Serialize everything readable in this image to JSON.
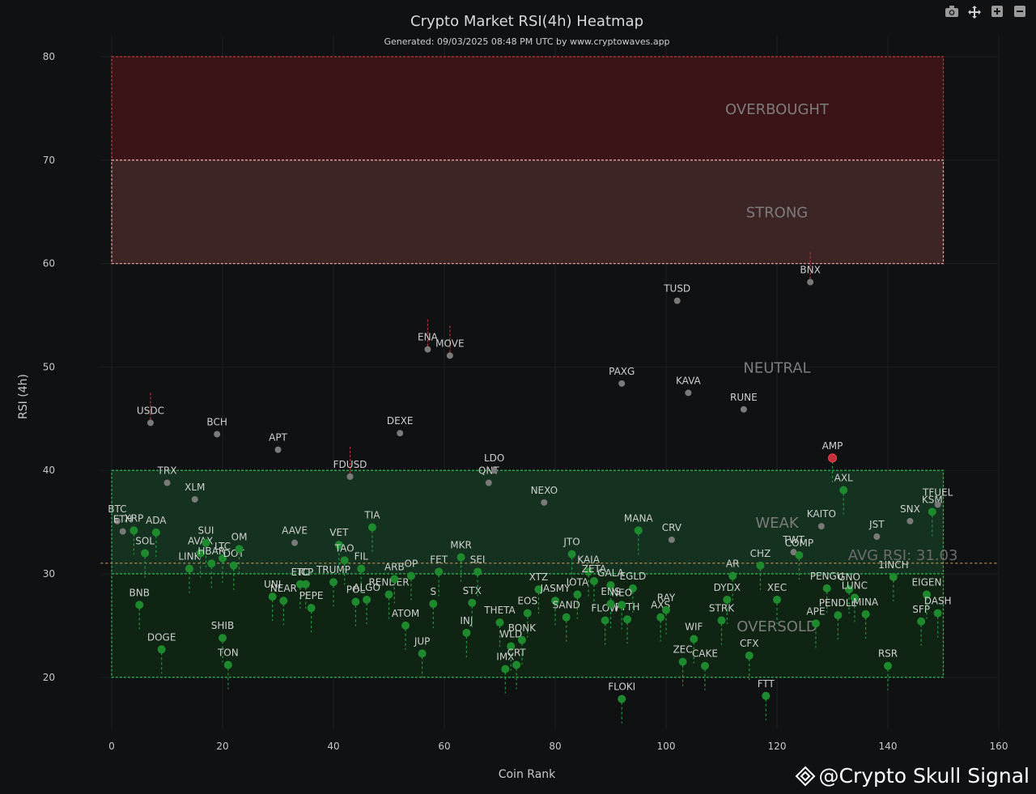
{
  "header": {
    "title": "Crypto Market RSI(4h) Heatmap",
    "subtitle": "Generated: 09/03/2025 08:48 PM UTC by www.cryptowaves.app"
  },
  "toolbar": {
    "camera": "camera-icon",
    "pan": "pan-icon",
    "zoom_in": "zoom-in-icon",
    "zoom_out": "zoom-out-icon"
  },
  "watermark": {
    "text": "@Crypto Skull Signal",
    "icon": "binance-diamond-icon"
  },
  "chart_data": {
    "type": "scatter",
    "title": "Crypto Market RSI(4h) Heatmap",
    "xlabel": "Coin Rank",
    "ylabel": "RSI (4h)",
    "xlim": [
      -2,
      160
    ],
    "ylim": [
      15,
      82
    ],
    "xticks": [
      0,
      20,
      40,
      60,
      80,
      100,
      120,
      140,
      160
    ],
    "yticks": [
      20,
      30,
      40,
      50,
      60,
      70,
      80
    ],
    "grid": true,
    "zones": [
      {
        "name": "OVERBOUGHT",
        "from": 70,
        "to": 80,
        "color": "#3a1416",
        "border": "#c0393b"
      },
      {
        "name": "STRONG",
        "from": 60,
        "to": 70,
        "color": "#3d2526",
        "border": "#e6a0a0"
      },
      {
        "name": "NEUTRAL",
        "from": 40,
        "to": 60,
        "color": "none",
        "border": "none"
      },
      {
        "name": "WEAK",
        "from": 30,
        "to": 40,
        "color": "#14321f",
        "border": "#2fae55"
      },
      {
        "name": "OVERSOLD",
        "from": 20,
        "to": 30,
        "color": "#102414",
        "border": "#2fae55"
      }
    ],
    "avg_rsi": 31.03,
    "avg_label": "AVG RSI: 31.03",
    "colors": {
      "neutral": "#7a7a7a",
      "oversold": "#1e8a2e",
      "overbought": "#c0303a",
      "avg_line": "#e0a060"
    },
    "points": [
      {
        "x": 1,
        "y": 35.1,
        "label": "BTC",
        "z": "n"
      },
      {
        "x": 2,
        "y": 34.1,
        "label": "ETH",
        "z": "n"
      },
      {
        "x": 4,
        "y": 34.2,
        "label": "XRP",
        "z": "w"
      },
      {
        "x": 5,
        "y": 27.0,
        "label": "BNB",
        "z": "o"
      },
      {
        "x": 6,
        "y": 32.0,
        "label": "SOL",
        "z": "o"
      },
      {
        "x": 7,
        "y": 44.6,
        "label": "USDC",
        "z": "n"
      },
      {
        "x": 8,
        "y": 34.0,
        "label": "ADA",
        "z": "w"
      },
      {
        "x": 9,
        "y": 22.7,
        "label": "DOGE",
        "z": "o"
      },
      {
        "x": 10,
        "y": 38.8,
        "label": "TRX",
        "z": "n"
      },
      {
        "x": 14,
        "y": 30.5,
        "label": "LINK",
        "z": "o"
      },
      {
        "x": 15,
        "y": 37.2,
        "label": "XLM",
        "z": "n"
      },
      {
        "x": 16,
        "y": 32.0,
        "label": "AVAX",
        "z": "w"
      },
      {
        "x": 17,
        "y": 33.0,
        "label": "SUI",
        "z": "w"
      },
      {
        "x": 18,
        "y": 31.0,
        "label": "HBAR",
        "z": "o"
      },
      {
        "x": 19,
        "y": 43.5,
        "label": "BCH",
        "z": "n"
      },
      {
        "x": 20,
        "y": 31.5,
        "label": "LTC",
        "z": "o"
      },
      {
        "x": 20,
        "y": 23.8,
        "label": "SHIB",
        "z": "o"
      },
      {
        "x": 21,
        "y": 21.2,
        "label": "TON",
        "z": "o"
      },
      {
        "x": 22,
        "y": 30.8,
        "label": "DOT",
        "z": "o"
      },
      {
        "x": 23,
        "y": 32.4,
        "label": "OM",
        "z": "w"
      },
      {
        "x": 30,
        "y": 42.0,
        "label": "APT",
        "z": "n"
      },
      {
        "x": 29,
        "y": 27.8,
        "label": "UNI",
        "z": "o"
      },
      {
        "x": 31,
        "y": 27.4,
        "label": "NEAR",
        "z": "o"
      },
      {
        "x": 33,
        "y": 33.0,
        "label": "AAVE",
        "z": "n"
      },
      {
        "x": 34,
        "y": 29.0,
        "label": "ETC",
        "z": "o"
      },
      {
        "x": 35,
        "y": 29.0,
        "label": "ICP",
        "z": "o"
      },
      {
        "x": 36,
        "y": 26.7,
        "label": "PEPE",
        "z": "o"
      },
      {
        "x": 40,
        "y": 29.2,
        "label": "TRUMP",
        "z": "o"
      },
      {
        "x": 41,
        "y": 32.8,
        "label": "VET",
        "z": "o"
      },
      {
        "x": 42,
        "y": 31.3,
        "label": "TAO",
        "z": "o"
      },
      {
        "x": 43,
        "y": 39.4,
        "label": "FDUSD",
        "z": "n"
      },
      {
        "x": 44,
        "y": 27.3,
        "label": "POL",
        "z": "o"
      },
      {
        "x": 45,
        "y": 30.5,
        "label": "FIL",
        "z": "o"
      },
      {
        "x": 46,
        "y": 27.5,
        "label": "ALGO",
        "z": "o"
      },
      {
        "x": 47,
        "y": 34.5,
        "label": "TIA",
        "z": "w"
      },
      {
        "x": 50,
        "y": 28.0,
        "label": "RENDER",
        "z": "o"
      },
      {
        "x": 51,
        "y": 29.5,
        "label": "ARB",
        "z": "o"
      },
      {
        "x": 52,
        "y": 43.6,
        "label": "DEXE",
        "z": "n"
      },
      {
        "x": 53,
        "y": 25.0,
        "label": "ATOM",
        "z": "o"
      },
      {
        "x": 54,
        "y": 29.8,
        "label": "OP",
        "z": "o"
      },
      {
        "x": 56,
        "y": 22.3,
        "label": "JUP",
        "z": "o"
      },
      {
        "x": 57,
        "y": 51.7,
        "label": "ENA",
        "z": "n"
      },
      {
        "x": 58,
        "y": 27.1,
        "label": "S",
        "z": "o"
      },
      {
        "x": 59,
        "y": 30.2,
        "label": "FET",
        "z": "o"
      },
      {
        "x": 61,
        "y": 51.1,
        "label": "MOVE",
        "z": "n"
      },
      {
        "x": 63,
        "y": 31.6,
        "label": "MKR",
        "z": "o"
      },
      {
        "x": 64,
        "y": 24.3,
        "label": "INJ",
        "z": "o"
      },
      {
        "x": 65,
        "y": 27.2,
        "label": "STX",
        "z": "o"
      },
      {
        "x": 66,
        "y": 30.2,
        "label": "SEI",
        "z": "o"
      },
      {
        "x": 68,
        "y": 38.8,
        "label": "QNT",
        "z": "n"
      },
      {
        "x": 69,
        "y": 40.0,
        "label": "LDO",
        "z": "n"
      },
      {
        "x": 70,
        "y": 25.3,
        "label": "THETA",
        "z": "o"
      },
      {
        "x": 71,
        "y": 20.8,
        "label": "IMX",
        "z": "o"
      },
      {
        "x": 72,
        "y": 23.0,
        "label": "WLD",
        "z": "o"
      },
      {
        "x": 73,
        "y": 21.2,
        "label": "CRT",
        "z": "o"
      },
      {
        "x": 74,
        "y": 23.6,
        "label": "BONK",
        "z": "o"
      },
      {
        "x": 75,
        "y": 26.2,
        "label": "EOS",
        "z": "o"
      },
      {
        "x": 77,
        "y": 28.5,
        "label": "XTZ",
        "z": "o"
      },
      {
        "x": 78,
        "y": 36.9,
        "label": "NEXO",
        "z": "n"
      },
      {
        "x": 80,
        "y": 27.4,
        "label": "JASMY",
        "z": "o"
      },
      {
        "x": 82,
        "y": 25.8,
        "label": "SAND",
        "z": "o"
      },
      {
        "x": 83,
        "y": 31.9,
        "label": "JTO",
        "z": "o"
      },
      {
        "x": 84,
        "y": 28.0,
        "label": "IOTA",
        "z": "o"
      },
      {
        "x": 86,
        "y": 30.2,
        "label": "KAIA",
        "z": "o"
      },
      {
        "x": 87,
        "y": 29.3,
        "label": "ZETA",
        "z": "o"
      },
      {
        "x": 89,
        "y": 25.5,
        "label": "FLOW",
        "z": "o"
      },
      {
        "x": 90,
        "y": 28.9,
        "label": "GALA",
        "z": "o"
      },
      {
        "x": 92,
        "y": 17.9,
        "label": "FLOKI",
        "z": "o"
      },
      {
        "x": 93,
        "y": 25.6,
        "label": "PYTH",
        "z": "o"
      },
      {
        "x": 94,
        "y": 28.6,
        "label": "EGLD",
        "z": "o"
      },
      {
        "x": 95,
        "y": 34.2,
        "label": "MANA",
        "z": "w"
      },
      {
        "x": 92,
        "y": 27.0,
        "label": "NEO",
        "z": "o"
      },
      {
        "x": 90,
        "y": 27.1,
        "label": "ENS",
        "z": "o"
      },
      {
        "x": 92,
        "y": 48.4,
        "label": "PAXG",
        "z": "n"
      },
      {
        "x": 99,
        "y": 25.8,
        "label": "AXS",
        "z": "o"
      },
      {
        "x": 100,
        "y": 26.5,
        "label": "RAY",
        "z": "o"
      },
      {
        "x": 101,
        "y": 33.3,
        "label": "CRV",
        "z": "n"
      },
      {
        "x": 102,
        "y": 56.4,
        "label": "TUSD",
        "z": "n"
      },
      {
        "x": 103,
        "y": 21.5,
        "label": "ZEC",
        "z": "o"
      },
      {
        "x": 104,
        "y": 47.5,
        "label": "KAVA",
        "z": "n"
      },
      {
        "x": 105,
        "y": 23.7,
        "label": "WIF",
        "z": "o"
      },
      {
        "x": 107,
        "y": 21.1,
        "label": "CAKE",
        "z": "o"
      },
      {
        "x": 110,
        "y": 25.5,
        "label": "STRK",
        "z": "o"
      },
      {
        "x": 111,
        "y": 27.5,
        "label": "DYDX",
        "z": "o"
      },
      {
        "x": 112,
        "y": 29.8,
        "label": "AR",
        "z": "o"
      },
      {
        "x": 114,
        "y": 45.9,
        "label": "RUNE",
        "z": "n"
      },
      {
        "x": 115,
        "y": 22.1,
        "label": "CFX",
        "z": "o"
      },
      {
        "x": 117,
        "y": 30.8,
        "label": "CHZ",
        "z": "o"
      },
      {
        "x": 118,
        "y": 18.2,
        "label": "FTT",
        "z": "o"
      },
      {
        "x": 120,
        "y": 27.5,
        "label": "XEC",
        "z": "o"
      },
      {
        "x": 123,
        "y": 32.1,
        "label": "TWT",
        "z": "n"
      },
      {
        "x": 124,
        "y": 31.8,
        "label": "COMP",
        "z": "o"
      },
      {
        "x": 126,
        "y": 58.2,
        "label": "BNX",
        "z": "n"
      },
      {
        "x": 127,
        "y": 25.2,
        "label": "APE",
        "z": "o"
      },
      {
        "x": 128,
        "y": 34.6,
        "label": "KAITO",
        "z": "n"
      },
      {
        "x": 129,
        "y": 28.6,
        "label": "PENGU",
        "z": "o"
      },
      {
        "x": 130,
        "y": 41.2,
        "label": "AMP",
        "z": "ob"
      },
      {
        "x": 131,
        "y": 26.0,
        "label": "PENDLE",
        "z": "o"
      },
      {
        "x": 132,
        "y": 38.1,
        "label": "AXL",
        "z": "o"
      },
      {
        "x": 133,
        "y": 28.5,
        "label": "GNO",
        "z": "o"
      },
      {
        "x": 134,
        "y": 27.7,
        "label": "LUNC",
        "z": "o"
      },
      {
        "x": 136,
        "y": 26.1,
        "label": "MINA",
        "z": "o"
      },
      {
        "x": 138,
        "y": 33.6,
        "label": "JST",
        "z": "n"
      },
      {
        "x": 140,
        "y": 21.1,
        "label": "RSR",
        "z": "o"
      },
      {
        "x": 141,
        "y": 29.7,
        "label": "1INCH",
        "z": "o"
      },
      {
        "x": 144,
        "y": 35.1,
        "label": "SNX",
        "z": "n"
      },
      {
        "x": 146,
        "y": 25.4,
        "label": "SFP",
        "z": "o"
      },
      {
        "x": 147,
        "y": 28.0,
        "label": "EIGEN",
        "z": "o"
      },
      {
        "x": 148,
        "y": 36.0,
        "label": "KSM",
        "z": "o"
      },
      {
        "x": 149,
        "y": 36.7,
        "label": "TFUEL",
        "z": "n"
      },
      {
        "x": 149,
        "y": 26.2,
        "label": "DASH",
        "z": "o"
      }
    ]
  }
}
